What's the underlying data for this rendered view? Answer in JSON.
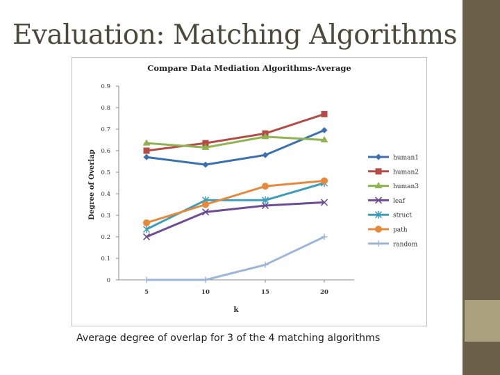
{
  "slide": {
    "title": "Evaluation: Matching Algorithms",
    "caption": "Average degree of overlap for 3 of the 4 matching algorithms"
  },
  "chart_data": {
    "type": "line",
    "title": "Compare Data Mediation Algorithms-Average",
    "xlabel": "k",
    "ylabel": "Degree of Overlap",
    "categories": [
      "5",
      "10",
      "15",
      "20"
    ],
    "x": [
      5,
      10,
      15,
      20
    ],
    "ylim": [
      0,
      0.9
    ],
    "yticks": [
      "0",
      "0.1",
      "0.2",
      "0.3",
      "0.4",
      "0.5",
      "0.6",
      "0.7",
      "0.8",
      "0.9"
    ],
    "grid": false,
    "legend": "right",
    "series": [
      {
        "name": "human1",
        "values": [
          0.57,
          0.535,
          0.58,
          0.695
        ],
        "color": "#3a6fb0",
        "marker": "diamond"
      },
      {
        "name": "human2",
        "values": [
          0.6,
          0.635,
          0.68,
          0.77
        ],
        "color": "#b64a45",
        "marker": "square"
      },
      {
        "name": "human3",
        "values": [
          0.635,
          0.615,
          0.665,
          0.65
        ],
        "color": "#8db44f",
        "marker": "triangle"
      },
      {
        "name": "leaf",
        "values": [
          0.2,
          0.315,
          0.345,
          0.36
        ],
        "color": "#6e4c95",
        "marker": "x"
      },
      {
        "name": "struct",
        "values": [
          0.235,
          0.37,
          0.37,
          0.45
        ],
        "color": "#3c9db8",
        "marker": "star"
      },
      {
        "name": "path",
        "values": [
          0.265,
          0.35,
          0.435,
          0.46
        ],
        "color": "#e8883a",
        "marker": "circle"
      },
      {
        "name": "random",
        "values": [
          0,
          0,
          0.07,
          0.2
        ],
        "color": "#9cb6da",
        "marker": "plus"
      }
    ]
  }
}
